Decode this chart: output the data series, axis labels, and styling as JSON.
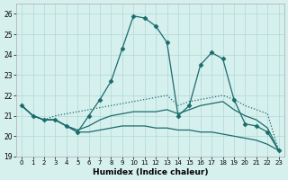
{
  "xlabel": "Humidex (Indice chaleur)",
  "bg_color": "#d6f0ee",
  "grid_color": "#b0d8d5",
  "line_color": "#1a6b6b",
  "xlim": [
    -0.5,
    23.5
  ],
  "ylim": [
    19.0,
    26.5
  ],
  "xticks": [
    0,
    1,
    2,
    3,
    4,
    5,
    6,
    7,
    8,
    9,
    10,
    11,
    12,
    13,
    14,
    15,
    16,
    17,
    18,
    19,
    20,
    21,
    22,
    23
  ],
  "yticks": [
    19,
    20,
    21,
    22,
    23,
    24,
    25,
    26
  ],
  "series": [
    {
      "x": [
        0,
        1,
        2,
        3,
        4,
        5,
        6,
        7,
        8,
        9,
        10,
        11,
        12,
        13,
        14,
        15,
        16,
        17,
        18,
        19,
        20,
        21,
        22,
        23
      ],
      "y": [
        21.5,
        21.0,
        20.8,
        20.8,
        20.5,
        20.2,
        21.0,
        21.8,
        22.7,
        24.3,
        25.9,
        25.8,
        25.4,
        24.6,
        21.0,
        21.5,
        23.5,
        24.1,
        23.8,
        21.8,
        20.6,
        20.5,
        20.2,
        19.3
      ],
      "marker": "D",
      "markersize": 2.5,
      "linestyle": "-",
      "linewidth": 0.9
    },
    {
      "x": [
        0,
        1,
        2,
        3,
        4,
        5,
        6,
        7,
        8,
        9,
        10,
        11,
        12,
        13,
        14,
        15,
        16,
        17,
        18,
        19,
        20,
        21,
        22,
        23
      ],
      "y": [
        21.5,
        21.0,
        20.8,
        21.0,
        21.1,
        21.2,
        21.3,
        21.4,
        21.5,
        21.6,
        21.7,
        21.8,
        21.9,
        22.0,
        21.5,
        21.7,
        21.8,
        21.9,
        22.0,
        21.8,
        21.5,
        21.3,
        21.1,
        19.3
      ],
      "marker": null,
      "markersize": 0,
      "linestyle": ":",
      "linewidth": 0.9
    },
    {
      "x": [
        0,
        1,
        2,
        3,
        4,
        5,
        6,
        7,
        8,
        9,
        10,
        11,
        12,
        13,
        14,
        15,
        16,
        17,
        18,
        19,
        20,
        21,
        22,
        23
      ],
      "y": [
        21.5,
        21.0,
        20.8,
        20.8,
        20.5,
        20.2,
        20.2,
        20.3,
        20.4,
        20.5,
        20.5,
        20.5,
        20.4,
        20.4,
        20.3,
        20.3,
        20.2,
        20.2,
        20.1,
        20.0,
        19.9,
        19.8,
        19.6,
        19.3
      ],
      "marker": null,
      "markersize": 0,
      "linestyle": "-",
      "linewidth": 0.9
    },
    {
      "x": [
        0,
        1,
        2,
        3,
        4,
        5,
        6,
        7,
        8,
        9,
        10,
        11,
        12,
        13,
        14,
        15,
        16,
        17,
        18,
        19,
        20,
        21,
        22,
        23
      ],
      "y": [
        21.5,
        21.0,
        20.8,
        20.8,
        20.5,
        20.3,
        20.5,
        20.8,
        21.0,
        21.1,
        21.2,
        21.2,
        21.2,
        21.3,
        21.1,
        21.3,
        21.5,
        21.6,
        21.7,
        21.3,
        21.0,
        20.8,
        20.4,
        19.3
      ],
      "marker": null,
      "markersize": 0,
      "linestyle": "-",
      "linewidth": 0.9
    }
  ]
}
